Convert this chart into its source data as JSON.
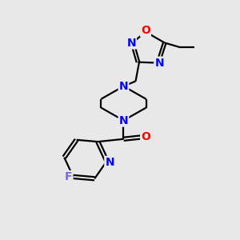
{
  "bg_color": "#e8e8e8",
  "bond_color": "#000000",
  "N_color": "#0000ff",
  "O_color": "#ff0000",
  "F_color": "#7b68ee",
  "line_width": 1.6,
  "fig_width": 3.0,
  "fig_height": 3.0,
  "dpi": 100,
  "xlim": [
    0,
    10
  ],
  "ylim": [
    0,
    10
  ],
  "fontsize": 10
}
